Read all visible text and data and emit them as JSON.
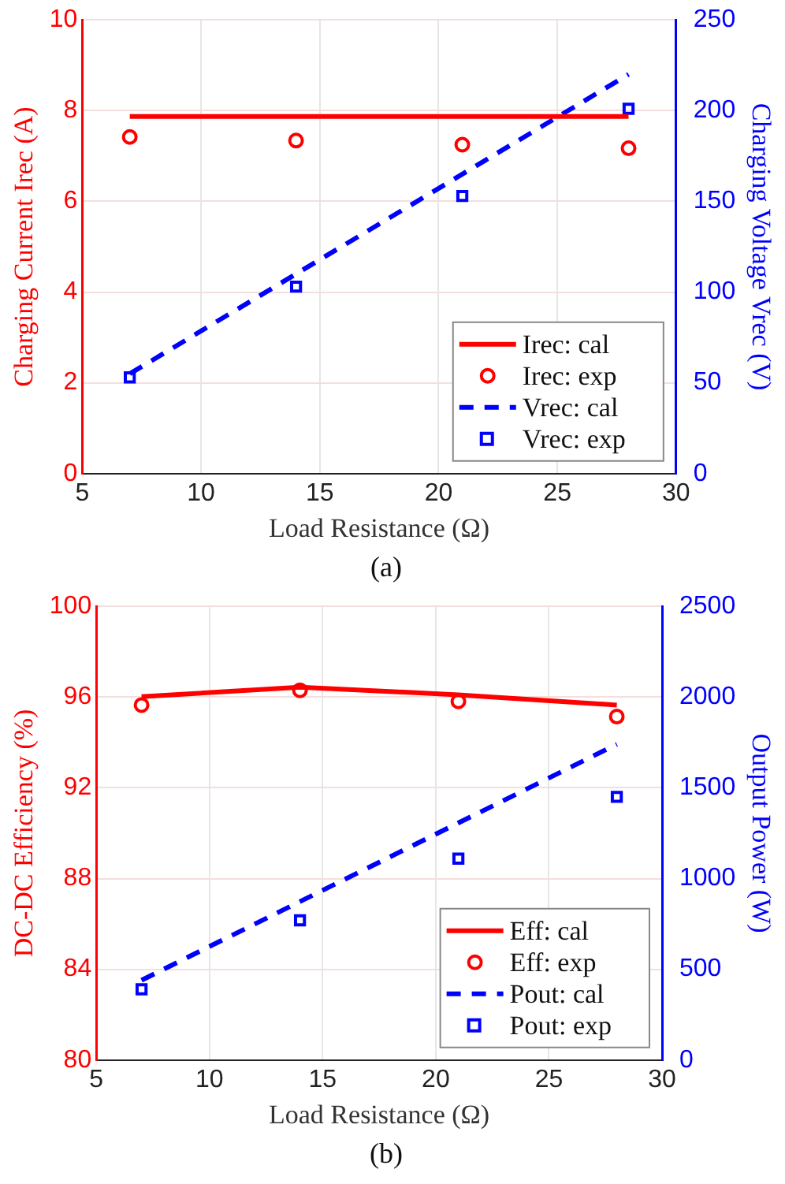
{
  "chart_data": [
    {
      "type": "line",
      "xlabel": "Load Resistance (Ω)",
      "ylabel": "Charging Current Irec (A)",
      "y2label": "Charging Voltage Vrec (V)",
      "annotations": [
        "(a)"
      ],
      "xlim": [
        5,
        30
      ],
      "xticks": [
        5,
        10,
        15,
        20,
        25,
        30
      ],
      "ylim": [
        0,
        10
      ],
      "yticks": [
        0,
        2,
        4,
        6,
        8,
        10
      ],
      "y2lim": [
        0,
        250
      ],
      "y2ticks": [
        0,
        50,
        100,
        150,
        200,
        250
      ],
      "grid": true,
      "legend": "bottom right",
      "series": [
        {
          "name": "Irec: cal",
          "type": "line",
          "color": "#ff0000",
          "line_style": "solid",
          "marker": "none",
          "x": [
            7,
            28
          ],
          "values": [
            7.87,
            7.87
          ]
        },
        {
          "name": "Irec: exp",
          "type": "scatter",
          "color": "#ff0000",
          "marker": "circle",
          "x": [
            7,
            14,
            21,
            28
          ],
          "values": [
            7.42,
            7.34,
            7.25,
            7.17
          ]
        },
        {
          "name": "Vrec: cal",
          "type": "line",
          "axis": "y2",
          "color": "#0000ff",
          "line_style": "dashed",
          "marker": "none",
          "x": [
            7,
            28
          ],
          "values": [
            55,
            220
          ]
        },
        {
          "name": "Vrec: exp",
          "type": "scatter",
          "axis": "y2",
          "color": "#0000ff",
          "marker": "square",
          "x": [
            7,
            14,
            21,
            28
          ],
          "values": [
            53,
            103,
            153,
            201
          ]
        }
      ]
    },
    {
      "type": "line",
      "xlabel": "Load Resistance (Ω)",
      "ylabel": "DC-DC Efficiency (%)",
      "y2label": "Output Power (W)",
      "annotations": [
        "(b)"
      ],
      "xlim": [
        5,
        30
      ],
      "xticks": [
        5,
        10,
        15,
        20,
        25,
        30
      ],
      "ylim": [
        80,
        100
      ],
      "yticks": [
        80,
        84,
        88,
        92,
        96,
        100
      ],
      "y2lim": [
        0,
        2500
      ],
      "y2ticks": [
        0,
        500,
        1000,
        1500,
        2000,
        2500
      ],
      "grid": true,
      "legend": "bottom right",
      "series": [
        {
          "name": "Eff: cal",
          "type": "line",
          "color": "#ff0000",
          "line_style": "solid",
          "marker": "none",
          "x": [
            7,
            14,
            21,
            28
          ],
          "values": [
            96.02,
            96.44,
            96.1,
            95.65
          ]
        },
        {
          "name": "Eff: exp",
          "type": "scatter",
          "color": "#ff0000",
          "marker": "circle",
          "x": [
            7,
            14,
            21,
            28
          ],
          "values": [
            95.65,
            96.3,
            95.81,
            95.14
          ]
        },
        {
          "name": "Pout: cal",
          "type": "line",
          "axis": "y2",
          "color": "#0000ff",
          "line_style": "dashed",
          "marker": "none",
          "x": [
            7,
            28
          ],
          "values": [
            440,
            1740
          ]
        },
        {
          "name": "Pout: exp",
          "type": "scatter",
          "axis": "y2",
          "color": "#0000ff",
          "marker": "square",
          "x": [
            7,
            14,
            21,
            28
          ],
          "values": [
            390,
            770,
            1110,
            1450
          ]
        }
      ]
    }
  ]
}
